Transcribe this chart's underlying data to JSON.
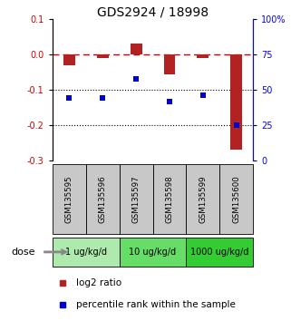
{
  "title": "GDS2924 / 18998",
  "samples": [
    "GSM135595",
    "GSM135596",
    "GSM135597",
    "GSM135598",
    "GSM135599",
    "GSM135600"
  ],
  "log2_ratio": [
    -0.03,
    -0.01,
    0.03,
    -0.055,
    -0.01,
    -0.27
  ],
  "percentile_rank": [
    44,
    44,
    58,
    42,
    46,
    25
  ],
  "dose_groups": [
    {
      "label": "1 ug/kg/d",
      "start": 0,
      "end": 2,
      "color": "#AEEAAE"
    },
    {
      "label": "10 ug/kg/d",
      "start": 2,
      "end": 4,
      "color": "#66DD66"
    },
    {
      "label": "1000 ug/kg/d",
      "start": 4,
      "end": 6,
      "color": "#33CC33"
    }
  ],
  "ylim_left": [
    -0.3,
    0.1
  ],
  "ylim_right": [
    0,
    100
  ],
  "left_yticks": [
    -0.3,
    -0.2,
    -0.1,
    0.0,
    0.1
  ],
  "right_yticks": [
    0,
    25,
    50,
    75,
    100
  ],
  "bar_color": "#B22222",
  "square_color": "#0000CC",
  "sample_box_color": "#C8C8C8",
  "dashed_line_color": "#CC0000",
  "title_fontsize": 10,
  "tick_fontsize": 7,
  "bar_width": 0.35,
  "legend_red_label": "log2 ratio",
  "legend_blue_label": "percentile rank within the sample"
}
